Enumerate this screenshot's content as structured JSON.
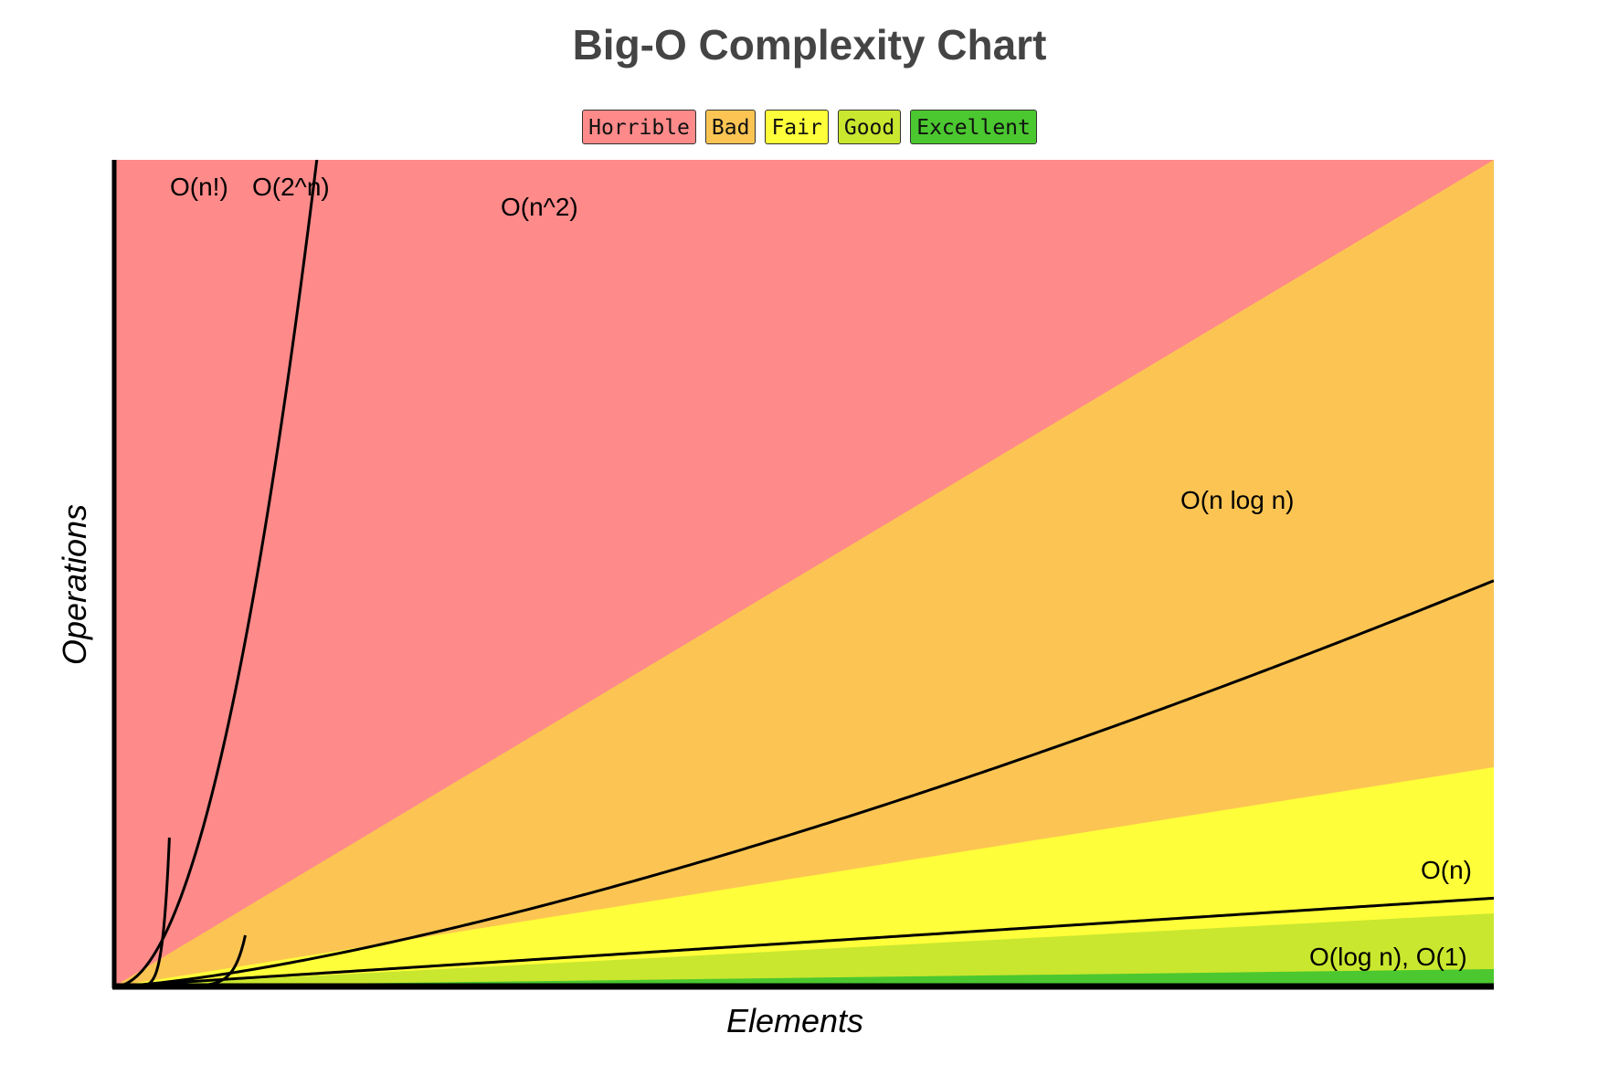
{
  "chart_data": {
    "type": "area",
    "title": "Big-O Complexity Chart",
    "xlabel": "Elements",
    "ylabel": "Operations",
    "grid": false,
    "legend_position": "top-center",
    "legend": [
      {
        "name": "Horrible",
        "color": "#fe8a8a"
      },
      {
        "name": "Bad",
        "color": "#fcc553"
      },
      {
        "name": "Fair",
        "color": "#fefe3a"
      },
      {
        "name": "Good",
        "color": "#c9e72f"
      },
      {
        "name": "Excellent",
        "color": "#4bc82f"
      }
    ],
    "curves": [
      {
        "label": "O(n!)"
      },
      {
        "label": "O(2^n)"
      },
      {
        "label": "O(n^2)"
      },
      {
        "label": "O(n log n)"
      },
      {
        "label": "O(n)"
      },
      {
        "label": "O(log n), O(1)"
      }
    ]
  }
}
